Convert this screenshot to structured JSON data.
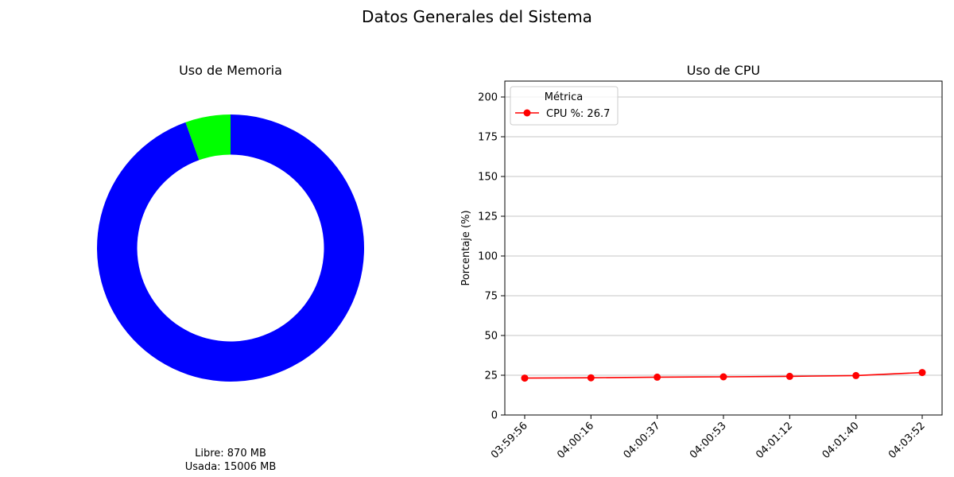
{
  "title": "Datos Generales del Sistema",
  "memory_panel": {
    "title": "Uso de Memoria",
    "free_text": "Libre: 870 MB",
    "used_text": "Usada: 15006 MB"
  },
  "cpu_panel": {
    "title": "Uso de CPU",
    "ylabel": "Porcentaje (%)",
    "legend_title": "Métrica",
    "legend_label": "CPU %: 26.7"
  },
  "chart_data": [
    {
      "type": "pie",
      "style": "donut",
      "title": "Uso de Memoria",
      "slices": [
        {
          "label": "Libre",
          "value": 870,
          "color": "#00ff00"
        },
        {
          "label": "Usada",
          "value": 15006,
          "color": "#0000ff"
        }
      ],
      "start_angle_deg": 90,
      "direction": "counterclockwise"
    },
    {
      "type": "line",
      "title": "Uso de CPU",
      "xlabel": "",
      "ylabel": "Porcentaje (%)",
      "categories": [
        "03:59:56",
        "04:00:16",
        "04:00:37",
        "04:00:53",
        "04:01:12",
        "04:01:40",
        "04:03:52"
      ],
      "series": [
        {
          "name": "CPU %: 26.7",
          "color": "#ff0000",
          "values": [
            23.2,
            23.4,
            23.8,
            24.0,
            24.3,
            24.8,
            26.7
          ]
        }
      ],
      "ylim": [
        0,
        210
      ],
      "yticks": [
        0,
        25,
        50,
        75,
        100,
        125,
        150,
        175,
        200
      ],
      "grid": "y",
      "legend_position": "top-left"
    }
  ]
}
